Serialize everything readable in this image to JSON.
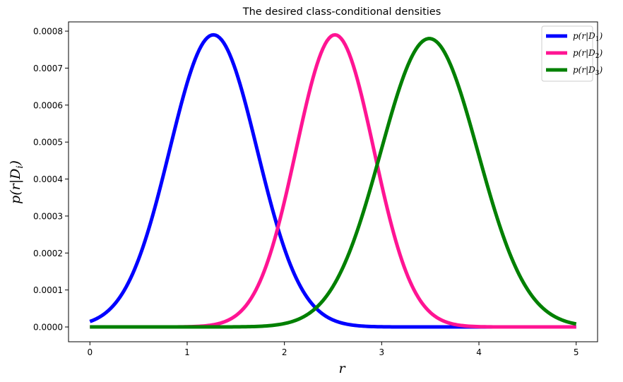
{
  "chart_data": {
    "type": "line",
    "title": "The desired class-conditional densities",
    "xlabel": "r",
    "ylabel": "p(r|D_i)",
    "xlim": [
      -0.22,
      5.22
    ],
    "ylim": [
      -4e-05,
      0.000825
    ],
    "xticks": [
      0,
      1,
      2,
      3,
      4,
      5
    ],
    "xtick_labels": [
      "0",
      "1",
      "2",
      "3",
      "4",
      "5"
    ],
    "yticks": [
      0,
      0.0001,
      0.0002,
      0.0003,
      0.0004,
      0.0005,
      0.0006,
      0.0007,
      0.0008
    ],
    "ytick_labels": [
      "0.0000",
      "0.0001",
      "0.0002",
      "0.0003",
      "0.0004",
      "0.0005",
      "0.0006",
      "0.0007",
      "0.0008"
    ],
    "grid": false,
    "legend_position": "top-right",
    "x_range": [
      0,
      5
    ],
    "series": [
      {
        "name": "D_1",
        "label": "p(r|D1)",
        "color": "#0000ff",
        "peak_x": 1.27,
        "peak_y": 0.00079,
        "sigma": 0.45
      },
      {
        "name": "D_2",
        "label": "p(r|D2)",
        "color": "#ff1493",
        "peak_x": 2.52,
        "peak_y": 0.00079,
        "sigma": 0.4
      },
      {
        "name": "D_3",
        "label": "p(r|D3)",
        "color": "#008000",
        "peak_x": 3.49,
        "peak_y": 0.00078,
        "sigma": 0.5
      }
    ]
  }
}
